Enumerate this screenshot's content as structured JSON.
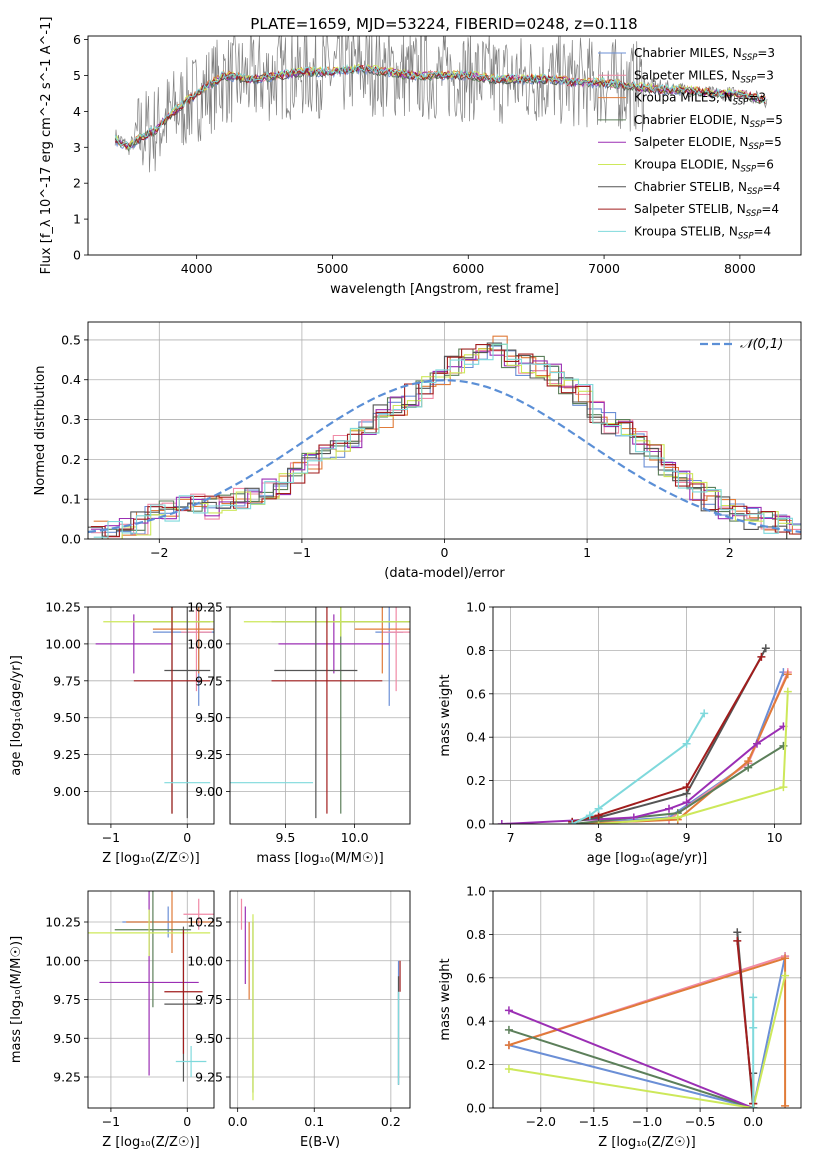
{
  "figure": {
    "title": "PLATE=1659, MJD=53224, FIBERID=0248, z=0.118"
  },
  "legend": [
    {
      "key": "cm",
      "label": "Chabrier MILES, N",
      "sub": "SSP",
      "tail": "=3",
      "color": "#6b8fd6"
    },
    {
      "key": "sm",
      "label": "Salpeter MILES, N",
      "sub": "SSP",
      "tail": "=3",
      "color": "#f08aa6"
    },
    {
      "key": "km",
      "label": "Kroupa MILES, N",
      "sub": "SSP",
      "tail": "=3",
      "color": "#e07b39"
    },
    {
      "key": "ce",
      "label": "Chabrier ELODIE, N",
      "sub": "SSP",
      "tail": "=5",
      "color": "#5c7f5a"
    },
    {
      "key": "se",
      "label": "Salpeter ELODIE, N",
      "sub": "SSP",
      "tail": "=5",
      "color": "#9b2fb4"
    },
    {
      "key": "ke",
      "label": "Kroupa ELODIE, N",
      "sub": "SSP",
      "tail": "=6",
      "color": "#cde85a"
    },
    {
      "key": "cs",
      "label": "Chabrier STELIB, N",
      "sub": "SSP",
      "tail": "=4",
      "color": "#555555"
    },
    {
      "key": "ss",
      "label": "Salpeter STELIB, N",
      "sub": "SSP",
      "tail": "=4",
      "color": "#a11d1d"
    },
    {
      "key": "ks",
      "label": "Kroupa STELIB, N",
      "sub": "SSP",
      "tail": "=4",
      "color": "#7fd9dc"
    }
  ],
  "chart_data": [
    {
      "id": "spectrum",
      "type": "line",
      "xlabel": "wavelength [Angstrom, rest frame]",
      "ylabel": "Flux [f_λ 10^-17 erg cm^-2 s^-1 A^-1]",
      "xlim": [
        3200,
        8450
      ],
      "ylim": [
        0,
        6.1
      ],
      "xticks": [
        4000,
        5000,
        6000,
        7000,
        8000
      ],
      "yticks": [
        0,
        1,
        2,
        3,
        4,
        5,
        6
      ],
      "series": [
        {
          "name": "data",
          "color": "#808080",
          "x": [
            3400,
            3500,
            3600,
            3700,
            3800,
            4000,
            4200,
            4400,
            4600,
            4800,
            5000,
            5200,
            5400,
            5600,
            5800,
            6000,
            6200,
            6400,
            6600,
            6800,
            7000,
            7200,
            7400,
            7600,
            7800,
            8000,
            8200
          ],
          "y": [
            3.3,
            3.0,
            3.4,
            3.5,
            3.9,
            4.4,
            4.9,
            4.9,
            5.0,
            5.1,
            5.1,
            5.2,
            5.1,
            5.0,
            5.0,
            5.0,
            4.9,
            4.9,
            4.9,
            4.8,
            4.8,
            4.7,
            4.7,
            4.6,
            4.5,
            4.5,
            4.3
          ]
        },
        {
          "name": "model",
          "color": "#7fd9dc",
          "x": [
            3400,
            3500,
            3600,
            3700,
            3800,
            4000,
            4200,
            4400,
            4600,
            4800,
            5000,
            5200,
            5400,
            5600,
            5800,
            6000,
            6200,
            6400,
            6600,
            6800,
            7000,
            7200,
            7400,
            7600,
            7800,
            8000,
            8200
          ],
          "y": [
            3.2,
            3.0,
            3.3,
            3.5,
            3.9,
            4.5,
            5.0,
            4.9,
            5.0,
            5.1,
            5.1,
            5.2,
            5.1,
            5.0,
            5.0,
            5.0,
            4.9,
            4.9,
            4.9,
            4.8,
            4.8,
            4.7,
            4.6,
            4.6,
            4.5,
            4.5,
            4.3
          ]
        }
      ]
    },
    {
      "id": "residuals",
      "type": "line",
      "xlabel": "(data-model)/error",
      "ylabel": "Normed distribution",
      "xlim": [
        -2.5,
        2.5
      ],
      "ylim": [
        0,
        0.545
      ],
      "xticks": [
        -2,
        -1,
        0,
        1,
        2
      ],
      "yticks": [
        0.0,
        0.1,
        0.2,
        0.3,
        0.4,
        0.5
      ],
      "reference": {
        "name": "𝒩(0,1)",
        "color": "#5b8fd6"
      },
      "histogram": {
        "bin_start": -2.5,
        "bin_width": 0.1,
        "values": [
          0.02,
          0.02,
          0.03,
          0.04,
          0.06,
          0.07,
          0.08,
          0.09,
          0.08,
          0.09,
          0.1,
          0.11,
          0.13,
          0.14,
          0.17,
          0.19,
          0.21,
          0.23,
          0.25,
          0.28,
          0.31,
          0.34,
          0.36,
          0.38,
          0.4,
          0.44,
          0.46,
          0.47,
          0.48,
          0.46,
          0.44,
          0.43,
          0.41,
          0.38,
          0.36,
          0.32,
          0.29,
          0.27,
          0.24,
          0.21,
          0.18,
          0.15,
          0.12,
          0.1,
          0.08,
          0.07,
          0.05,
          0.04,
          0.03,
          0.02
        ]
      }
    },
    {
      "id": "age-Z",
      "type": "scatter",
      "xlabel": "Z [log₁₀(Z/Z☉)]",
      "ylabel": "age  [log₁₀(age/yr)]",
      "xlim": [
        -1.3,
        0.35
      ],
      "ylim": [
        8.78,
        10.25
      ],
      "xticks": [
        -1,
        0
      ],
      "yticks": [
        9.0,
        9.25,
        9.5,
        9.75,
        10.0,
        10.25
      ],
      "points": [
        {
          "s": "cm",
          "x": 0.15,
          "y": 10.08,
          "xe": 0.6,
          "ye": 0.5
        },
        {
          "s": "sm",
          "x": 0.12,
          "y": 10.08,
          "xe": 0.2,
          "ye": 0.4
        },
        {
          "s": "km",
          "x": 0.15,
          "y": 10.1,
          "xe": 0.6,
          "ye": 0.3
        },
        {
          "s": "ce",
          "x": -0.2,
          "y": 10.15,
          "xe": 0.5,
          "ye": 1.3
        },
        {
          "s": "se",
          "x": -0.7,
          "y": 10.0,
          "xe": 0.5,
          "ye": 0.2
        },
        {
          "s": "ke",
          "x": -0.2,
          "y": 10.15,
          "xe": 0.9,
          "ye": 0.1
        },
        {
          "s": "cs",
          "x": 0.0,
          "y": 9.82,
          "xe": 0.3,
          "ye": 1.0
        },
        {
          "s": "ss",
          "x": -0.2,
          "y": 9.75,
          "xe": 0.5,
          "ye": 0.9
        },
        {
          "s": "ks",
          "x": 0.0,
          "y": 9.06,
          "xe": 0.3,
          "ye": 0.0
        }
      ]
    },
    {
      "id": "age-mass",
      "type": "scatter",
      "xlabel": "mass [log₁₀(M/M☉)]",
      "ylabel": "",
      "xlim": [
        9.1,
        10.4
      ],
      "ylim": [
        8.78,
        10.25
      ],
      "xticks": [
        9.5,
        10.0
      ],
      "yticks": [
        9.0,
        9.25,
        9.5,
        9.75,
        10.0,
        10.25
      ],
      "points": [
        {
          "s": "cm",
          "x": 10.25,
          "y": 10.08,
          "xe": 0.1,
          "ye": 0.5
        },
        {
          "s": "sm",
          "x": 10.3,
          "y": 10.08,
          "xe": 0.1,
          "ye": 0.4
        },
        {
          "s": "km",
          "x": 10.2,
          "y": 10.1,
          "xe": 0.2,
          "ye": 0.3
        },
        {
          "s": "ce",
          "x": 9.9,
          "y": 10.15,
          "xe": 0.5,
          "ye": 1.3
        },
        {
          "s": "se",
          "x": 9.85,
          "y": 10.0,
          "xe": 0.4,
          "ye": 0.2
        },
        {
          "s": "ke",
          "x": 9.9,
          "y": 10.15,
          "xe": 0.7,
          "ye": 0.1
        },
        {
          "s": "cs",
          "x": 9.72,
          "y": 9.82,
          "xe": 0.3,
          "ye": 1.0
        },
        {
          "s": "ss",
          "x": 9.8,
          "y": 9.75,
          "xe": 0.4,
          "ye": 0.9
        },
        {
          "s": "ks",
          "x": 9.35,
          "y": 9.06,
          "xe": 0.35,
          "ye": 0.0
        }
      ]
    },
    {
      "id": "mass-weight-age",
      "type": "line",
      "xlabel": "age  [log₁₀(age/yr)]",
      "ylabel": "mass weight",
      "xlim": [
        6.8,
        10.3
      ],
      "ylim": [
        0,
        1.0
      ],
      "xticks": [
        7,
        8,
        9,
        10
      ],
      "yticks": [
        0.0,
        0.2,
        0.4,
        0.6,
        0.8,
        1.0
      ],
      "series": [
        {
          "s": "cm",
          "x": [
            7.7,
            8.8,
            9.7,
            10.1
          ],
          "y": [
            0.0,
            0.03,
            0.28,
            0.7
          ]
        },
        {
          "s": "sm",
          "x": [
            7.7,
            8.8,
            9.7,
            10.15
          ],
          "y": [
            0.0,
            0.02,
            0.28,
            0.7
          ]
        },
        {
          "s": "km",
          "x": [
            7.7,
            8.9,
            9.7,
            10.15
          ],
          "y": [
            0.0,
            0.02,
            0.29,
            0.69
          ]
        },
        {
          "s": "ce",
          "x": [
            7.7,
            8.9,
            9.7,
            10.1
          ],
          "y": [
            0.0,
            0.05,
            0.26,
            0.36
          ]
        },
        {
          "s": "se",
          "x": [
            6.9,
            8.4,
            8.8,
            9.0,
            9.8,
            10.1
          ],
          "y": [
            0.0,
            0.03,
            0.07,
            0.1,
            0.37,
            0.45
          ]
        },
        {
          "s": "ke",
          "x": [
            8.0,
            8.9,
            10.1,
            10.15
          ],
          "y": [
            0.0,
            0.03,
            0.17,
            0.61
          ]
        },
        {
          "s": "cs",
          "x": [
            7.7,
            8.0,
            9.0,
            9.9
          ],
          "y": [
            0.01,
            0.03,
            0.14,
            0.81
          ]
        },
        {
          "s": "ss",
          "x": [
            7.7,
            8.0,
            9.0,
            9.85
          ],
          "y": [
            0.01,
            0.04,
            0.17,
            0.77
          ]
        },
        {
          "s": "ks",
          "x": [
            7.7,
            7.9,
            8.0,
            9.0,
            9.2
          ],
          "y": [
            0.0,
            0.04,
            0.07,
            0.37,
            0.51
          ]
        }
      ]
    },
    {
      "id": "mass-Z",
      "type": "scatter",
      "xlabel": "Z [log₁₀(Z/Z☉)]",
      "ylabel": "mass [log₁₀(M/M☉)]",
      "xlim": [
        -1.3,
        0.35
      ],
      "ylim": [
        9.05,
        10.45
      ],
      "xticks": [
        -1,
        0
      ],
      "yticks": [
        9.25,
        9.5,
        9.75,
        10.0,
        10.25
      ],
      "points": [
        {
          "s": "cm",
          "x": -0.25,
          "y": 10.25,
          "xe": 0.6,
          "ye": 0.1
        },
        {
          "s": "sm",
          "x": 0.15,
          "y": 10.3,
          "xe": 0.2,
          "ye": 0.1
        },
        {
          "s": "km",
          "x": -0.2,
          "y": 10.25,
          "xe": 0.6,
          "ye": 0.2
        },
        {
          "s": "ce",
          "x": -0.45,
          "y": 10.2,
          "xe": 0.5,
          "ye": 0.5
        },
        {
          "s": "se",
          "x": -0.5,
          "y": 9.86,
          "xe": 0.65,
          "ye": 0.6
        },
        {
          "s": "ke",
          "x": -0.5,
          "y": 10.18,
          "xe": 0.8,
          "ye": 0.15
        },
        {
          "s": "cs",
          "x": -0.05,
          "y": 9.72,
          "xe": 0.25,
          "ye": 0.5
        },
        {
          "s": "ss",
          "x": -0.05,
          "y": 9.8,
          "xe": 0.25,
          "ye": 0.4
        },
        {
          "s": "ks",
          "x": 0.05,
          "y": 9.35,
          "xe": 0.2,
          "ye": 0.1
        }
      ]
    },
    {
      "id": "mass-EBV",
      "type": "scatter",
      "xlabel": "E(B-V)",
      "ylabel": "",
      "xlim": [
        -0.01,
        0.225
      ],
      "ylim": [
        9.05,
        10.45
      ],
      "xticks": [
        0.0,
        0.1,
        0.2
      ],
      "yticks": [
        9.25,
        9.5,
        9.75,
        10.0,
        10.25
      ],
      "points": [
        {
          "s": "cm",
          "x": 0.21,
          "y": 9.6,
          "xe": 0.0,
          "ye": 0.4
        },
        {
          "s": "sm",
          "x": 0.005,
          "y": 10.3,
          "xe": 0.0,
          "ye": 0.1
        },
        {
          "s": "km",
          "x": 0.015,
          "y": 10.0,
          "xe": 0.0,
          "ye": 0.25
        },
        {
          "s": "ce",
          "x": 0.02,
          "y": 9.7,
          "xe": 0.0,
          "ye": 0.55
        },
        {
          "s": "se",
          "x": 0.01,
          "y": 10.1,
          "xe": 0.0,
          "ye": 0.25
        },
        {
          "s": "ke",
          "x": 0.02,
          "y": 9.7,
          "xe": 0.0,
          "ye": 0.6
        },
        {
          "s": "cs",
          "x": 0.21,
          "y": 9.55,
          "xe": 0.0,
          "ye": 0.35
        },
        {
          "s": "ss",
          "x": 0.212,
          "y": 9.9,
          "xe": 0.0,
          "ye": 0.1
        },
        {
          "s": "ks",
          "x": 0.21,
          "y": 9.5,
          "xe": 0.0,
          "ye": 0.3
        }
      ]
    },
    {
      "id": "mass-weight-Z",
      "type": "line",
      "xlabel": "Z [log₁₀(Z/Z☉)]",
      "ylabel": "mass weight",
      "xlim": [
        -2.45,
        0.45
      ],
      "ylim": [
        0,
        1.0
      ],
      "xticks": [
        -2.0,
        -1.5,
        -1.0,
        -0.5,
        0.0
      ],
      "yticks": [
        0.0,
        0.2,
        0.4,
        0.6,
        0.8,
        1.0
      ],
      "series": [
        {
          "s": "cm",
          "x": [
            -2.3,
            0.0,
            0.3
          ],
          "y": [
            0.29,
            0.0,
            0.7
          ]
        },
        {
          "s": "sm",
          "x": [
            -2.3,
            0.3
          ],
          "y": [
            0.29,
            0.7
          ]
        },
        {
          "s": "km",
          "x": [
            -2.3,
            0.3,
            0.3
          ],
          "y": [
            0.29,
            0.69,
            0.01
          ]
        },
        {
          "s": "ce",
          "x": [
            -2.3,
            0.0
          ],
          "y": [
            0.36,
            0.0
          ]
        },
        {
          "s": "se",
          "x": [
            -2.3,
            0.0
          ],
          "y": [
            0.45,
            0.0
          ]
        },
        {
          "s": "ke",
          "x": [
            -2.3,
            0.0,
            0.3
          ],
          "y": [
            0.18,
            0.0,
            0.61
          ]
        },
        {
          "s": "cs",
          "x": [
            -0.15,
            0.0,
            0.0
          ],
          "y": [
            0.81,
            0.0,
            0.16
          ]
        },
        {
          "s": "ss",
          "x": [
            -0.15,
            0.0,
            0.0
          ],
          "y": [
            0.77,
            0.02,
            0.02
          ]
        },
        {
          "s": "ks",
          "x": [
            0.0,
            0.0,
            0.0
          ],
          "y": [
            0.0,
            0.37,
            0.51
          ]
        }
      ]
    }
  ]
}
